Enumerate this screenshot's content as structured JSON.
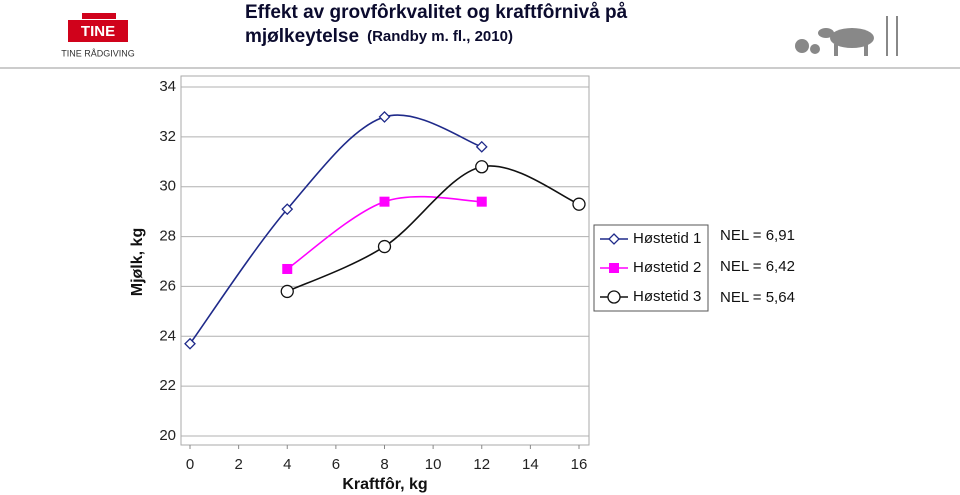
{
  "header": {
    "logo": "TINE",
    "logo_subtitle": "TINE RÅDGIVING",
    "title_line1": "Effekt av grovfôrkvalitet og kraftfôrnivå på",
    "title_line2": "mjølkeytelse",
    "citation": "(Randby m. fl., 2010)"
  },
  "chart_data": {
    "type": "line",
    "x": [
      0,
      4,
      8,
      12,
      16
    ],
    "series": [
      {
        "name": "Høstetid 1",
        "color": "#1f2a8a",
        "marker": "diamond",
        "values": [
          23.7,
          29.1,
          32.8,
          31.6,
          null
        ]
      },
      {
        "name": "Høstetid 2",
        "color": "#ff00ff",
        "marker": "square",
        "values": [
          null,
          26.7,
          29.4,
          29.4,
          null
        ]
      },
      {
        "name": "Høstetid 3",
        "color": "#111111",
        "marker": "circle",
        "values": [
          null,
          25.8,
          27.6,
          30.8,
          29.3
        ]
      }
    ],
    "xlabel": "Kraftfôr, kg",
    "ylabel": "Mjølk, kg",
    "xlim": [
      0,
      16
    ],
    "xticks": [
      0,
      2,
      4,
      6,
      8,
      10,
      12,
      14,
      16
    ],
    "ylim": [
      20,
      34
    ],
    "yticks": [
      20,
      22,
      24,
      26,
      28,
      30,
      32,
      34
    ],
    "grid": true,
    "legend": "right",
    "annotations": [
      "NEL = 6,91",
      "NEL = 6,42",
      "NEL = 5,64"
    ]
  }
}
